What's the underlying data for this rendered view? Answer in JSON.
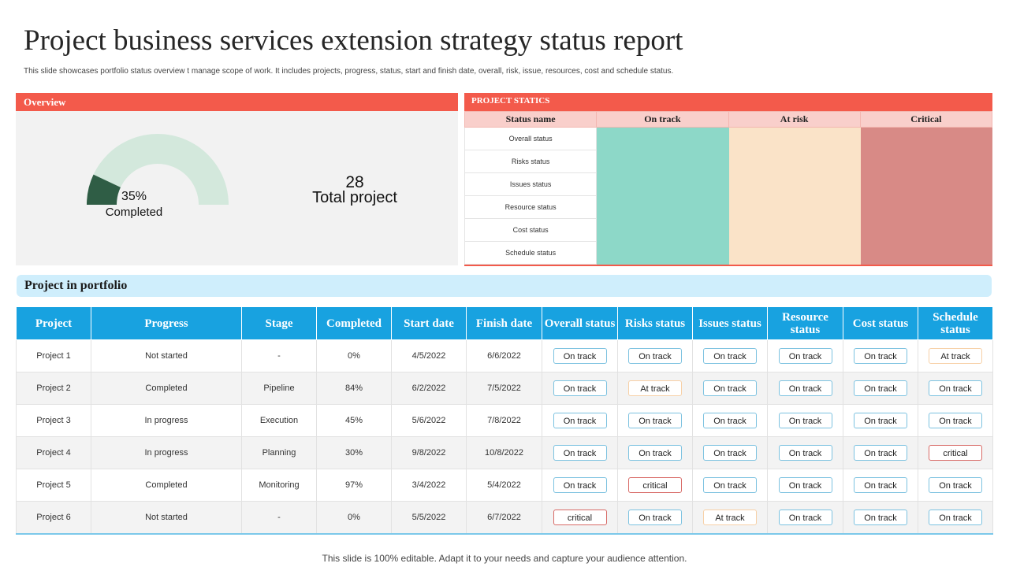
{
  "title": "Project business services extension strategy status report",
  "subtitle": "This slide showcases portfolio status overview t manage scope of work. It includes projects, progress, status, start and finish date, overall, risk, issue, resources, cost and schedule status.",
  "overview": {
    "label": "Overview",
    "completed_percent": "35%",
    "completed_label": "Completed",
    "completed_value": 35,
    "total_number": "28",
    "total_label": "Total project",
    "colors": {
      "fill": "#2f5d45",
      "track": "#d3e8dc"
    }
  },
  "statics": {
    "label": "PROJECT STATICS",
    "headers": [
      "Status name",
      "On track",
      "At risk",
      "Critical"
    ],
    "rows": [
      "Overall status",
      "Risks status",
      "Issues status",
      "Resource status",
      "Cost status",
      "Schedule status"
    ],
    "colors": {
      "on_track": "#8dd8c8",
      "at_risk": "#fae3c8",
      "critical": "#d88a86"
    }
  },
  "portfolio": {
    "label": "Project in portfolio",
    "headers": [
      "Project",
      "Progress",
      "Stage",
      "Completed",
      "Start date",
      "Finish date",
      "Overall status",
      "Risks status",
      "Issues status",
      "Resource status",
      "Cost status",
      "Schedule status"
    ],
    "rows": [
      [
        "Project 1",
        "Not started",
        "-",
        "0%",
        "4/5/2022",
        "6/6/2022",
        "On track",
        "On track",
        "On track",
        "On track",
        "On track",
        "At track"
      ],
      [
        "Project 2",
        "Completed",
        "Pipeline",
        "84%",
        "6/2/2022",
        "7/5/2022",
        "On track",
        "At track",
        "On track",
        "On track",
        "On track",
        "On track"
      ],
      [
        "Project 3",
        "In progress",
        "Execution",
        "45%",
        "5/6/2022",
        "7/8/2022",
        "On track",
        "On track",
        "On track",
        "On track",
        "On track",
        "On track"
      ],
      [
        "Project 4",
        "In progress",
        "Planning",
        "30%",
        "9/8/2022",
        "10/8/2022",
        "On track",
        "On track",
        "On track",
        "On track",
        "On track",
        "critical"
      ],
      [
        "Project 5",
        "Completed",
        "Monitoring",
        "97%",
        "3/4/2022",
        "5/4/2022",
        "On track",
        "critical",
        "On track",
        "On track",
        "On track",
        "On track"
      ],
      [
        "Project 6",
        "Not started",
        "-",
        "0%",
        "5/5/2022",
        "6/7/2022",
        "critical",
        "On track",
        "At track",
        "On track",
        "On track",
        "On track"
      ]
    ]
  },
  "footer": "This slide is 100% editable. Adapt it to your  needs and capture your audience attention."
}
